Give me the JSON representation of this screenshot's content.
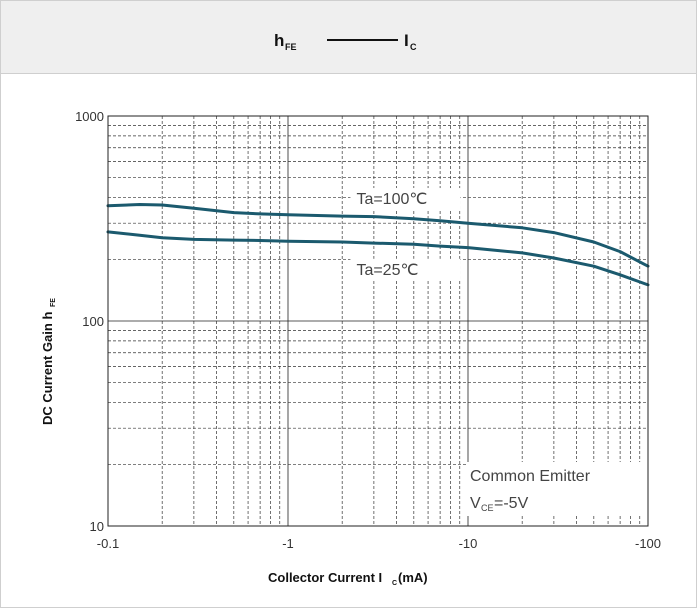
{
  "title": {
    "left_main": "h",
    "left_sub": "FE",
    "right_main": "I",
    "right_sub": "C"
  },
  "chart_data": {
    "type": "line",
    "xscale": "log",
    "yscale": "log",
    "xlim": [
      -0.1,
      -100
    ],
    "ylim": [
      10,
      1000
    ],
    "grid": true,
    "x_ticks": [
      {
        "value": -0.1,
        "label": "-0.1"
      },
      {
        "value": -1,
        "label": "-1"
      },
      {
        "value": -10,
        "label": "-10"
      },
      {
        "value": -100,
        "label": "-100"
      }
    ],
    "y_ticks": [
      {
        "value": 10,
        "label": "10"
      },
      {
        "value": 100,
        "label": "100"
      },
      {
        "value": 1000,
        "label": "1000"
      }
    ],
    "xlabel": {
      "main": "Collector Current I",
      "sub": "C",
      "unit": " (mA)"
    },
    "ylabel": {
      "main": "DC Current Gain h",
      "sub": "FE"
    },
    "series": [
      {
        "name": "Ta=100℃",
        "color": "#1b5a6e",
        "x": [
          -0.1,
          -0.15,
          -0.2,
          -0.3,
          -0.5,
          -0.7,
          -1,
          -2,
          -3,
          -5,
          -7,
          -10,
          -20,
          -30,
          -50,
          -70,
          -100
        ],
        "y": [
          365,
          370,
          368,
          355,
          338,
          333,
          330,
          325,
          323,
          315,
          308,
          300,
          285,
          270,
          243,
          218,
          185
        ]
      },
      {
        "name": "Ta=25℃",
        "color": "#1b5a6e",
        "x": [
          -0.1,
          -0.15,
          -0.2,
          -0.3,
          -0.5,
          -0.7,
          -1,
          -2,
          -3,
          -5,
          -7,
          -10,
          -20,
          -30,
          -50,
          -70,
          -100
        ],
        "y": [
          272,
          262,
          255,
          250,
          248,
          247,
          245,
          243,
          240,
          237,
          232,
          228,
          215,
          203,
          185,
          168,
          150
        ]
      }
    ],
    "annotations": [
      {
        "line1": "Common Emitter",
        "line2_main": "V",
        "line2_sub": "CE",
        "line2_rest": "=-5V"
      }
    ]
  }
}
